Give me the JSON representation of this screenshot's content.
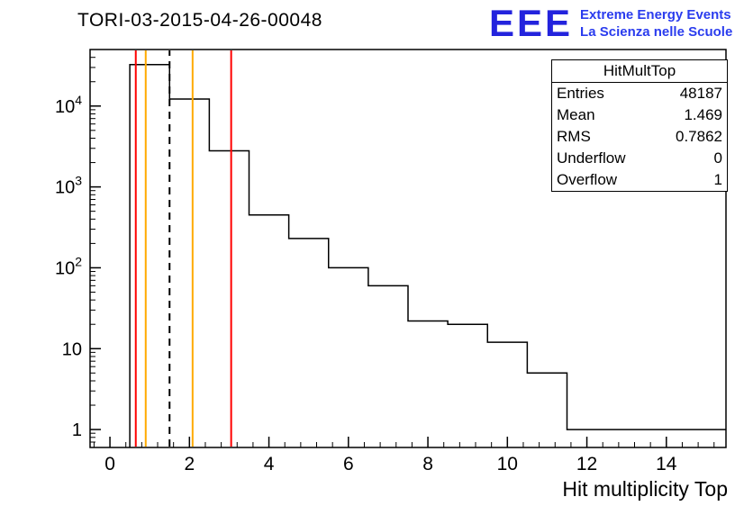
{
  "title": "TORI-03-2015-04-26-00048",
  "logo": {
    "text": "EEE",
    "line1": "Extreme Energy Events",
    "line2": "La Scienza nelle Scuole",
    "color_main": "#2323dd",
    "color_text": "#2a3cee"
  },
  "stats": {
    "title": "HitMultTop",
    "rows": [
      {
        "label": "Entries",
        "value": "48187"
      },
      {
        "label": "Mean",
        "value": "1.469"
      },
      {
        "label": "RMS",
        "value": "0.7862"
      },
      {
        "label": "Underflow",
        "value": "0"
      },
      {
        "label": "Overflow",
        "value": "1"
      }
    ]
  },
  "chart_data": {
    "type": "bar",
    "subtype": "step-histogram",
    "title": "TORI-03-2015-04-26-00048",
    "xlabel": "Hit multiplicity Top",
    "ylabel": "",
    "y_scale": "log",
    "xlim": [
      -0.5,
      15.5
    ],
    "ylim": [
      0.6,
      50000
    ],
    "grid": false,
    "line_color": "#000000",
    "bin_edges": [
      0.5,
      1.5,
      2.5,
      3.5,
      4.5,
      5.5,
      6.5,
      7.5,
      8.5,
      9.5,
      10.5,
      11.5,
      12.5,
      13.5,
      14.5,
      15.5
    ],
    "counts": [
      32500,
      12200,
      2800,
      450,
      230,
      100,
      60,
      22,
      20,
      12,
      5,
      1,
      1,
      1,
      1
    ],
    "x_major_ticks": [
      0,
      2,
      4,
      6,
      8,
      10,
      12,
      14
    ],
    "x_minor_step": 0.4,
    "y_major_ticks": [
      1,
      10,
      100,
      1000,
      10000
    ],
    "markers": [
      {
        "x": 0.65,
        "color": "#ff0000",
        "style": "solid",
        "name": "red-line-left"
      },
      {
        "x": 0.9,
        "color": "#ffaa00",
        "style": "solid",
        "name": "orange-line-left"
      },
      {
        "x": 1.5,
        "color": "#000000",
        "style": "dashed",
        "name": "dashed-mean-line"
      },
      {
        "x": 2.08,
        "color": "#ffaa00",
        "style": "solid",
        "name": "orange-line-right"
      },
      {
        "x": 3.05,
        "color": "#ff0000",
        "style": "solid",
        "name": "red-line-right"
      }
    ]
  }
}
